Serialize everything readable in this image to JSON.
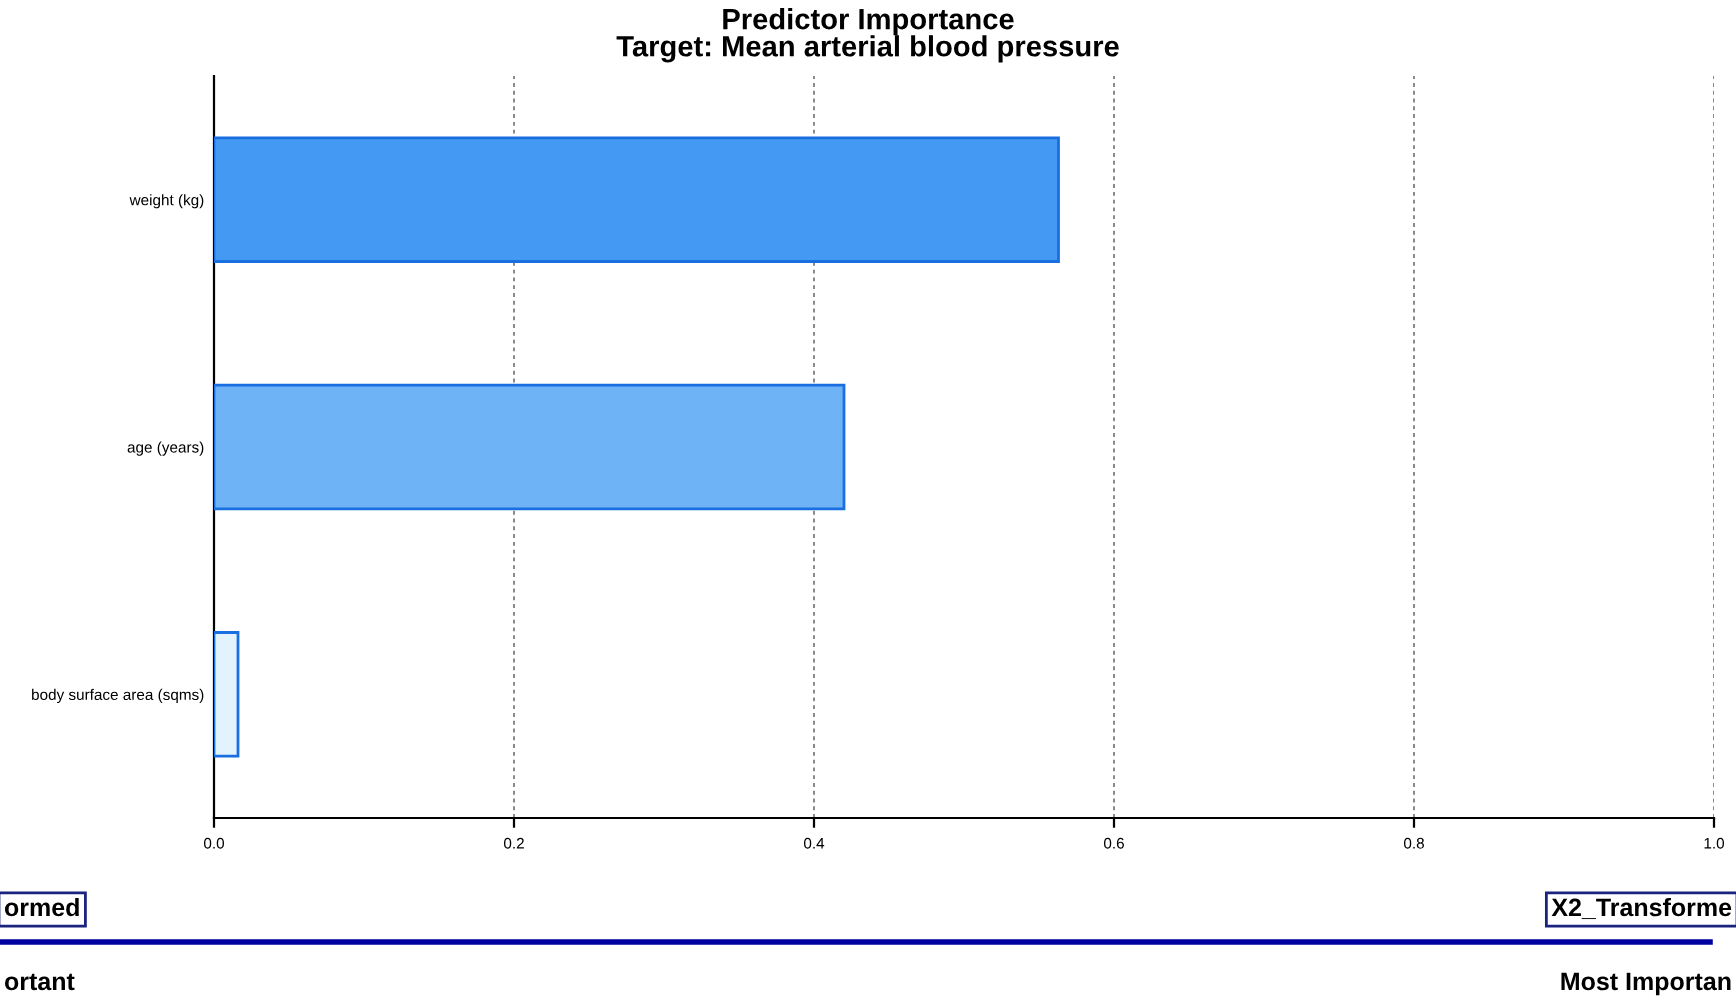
{
  "chart_data": {
    "type": "bar",
    "orientation": "horizontal",
    "title": "Predictor Importance\nTarget: Mean arterial blood pressure",
    "categories": [
      "weight (kg)",
      "age (years)",
      "body surface area (sqms)"
    ],
    "values": [
      0.563,
      0.42,
      0.016
    ],
    "colors": [
      "#449af3",
      "#6fb3f7",
      "#e3f3fd"
    ],
    "xlim": [
      0,
      1.0
    ],
    "xticks": [
      {
        "value": 0,
        "label": "0.0"
      },
      0.2,
      0.4,
      0.6,
      0.8,
      {
        "value": 1.0,
        "label": "1.0"
      }
    ],
    "grid": "x",
    "annotations": [
      "ormed",
      "X2_Transforme",
      "ortant",
      "Most Importan"
    ]
  }
}
